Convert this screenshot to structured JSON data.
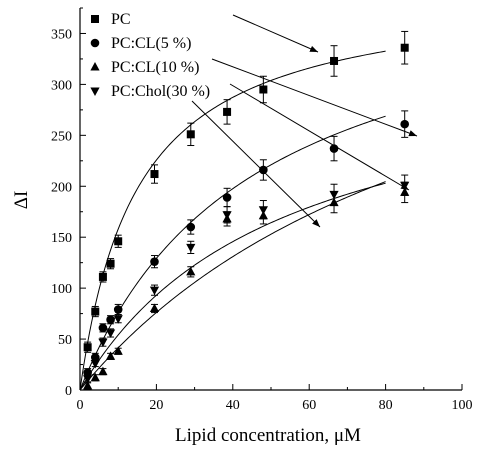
{
  "chart_data": {
    "type": "scatter",
    "title": "",
    "xlabel": "Lipid concentration, μM",
    "ylabel": "ΔI",
    "xlim": [
      0,
      100
    ],
    "ylim": [
      0,
      375
    ],
    "xticks": [
      0,
      20,
      40,
      60,
      80,
      100
    ],
    "yticks": [
      0,
      50,
      100,
      150,
      200,
      250,
      300,
      350
    ],
    "grid": false,
    "legend_position": "top-left",
    "series": [
      {
        "name": "PC",
        "marker": "square",
        "x": [
          2,
          4,
          6,
          8,
          10,
          19.5,
          29,
          38.5,
          48,
          66.5,
          85
        ],
        "y": [
          42,
          77,
          111,
          124,
          146,
          212,
          251,
          273,
          295,
          323,
          336
        ],
        "err": [
          5,
          5,
          5,
          5,
          6,
          9,
          11,
          12,
          13,
          15,
          16
        ],
        "fit": {
          "a": 395,
          "b": 15
        }
      },
      {
        "name": "PC:CL(5 %)",
        "marker": "circle",
        "x": [
          2,
          4,
          6,
          8,
          10,
          19.5,
          29,
          38.5,
          48,
          66.5,
          85
        ],
        "y": [
          17,
          32,
          61,
          69,
          79,
          126,
          160,
          189,
          216,
          237,
          261
        ],
        "err": [
          4,
          4,
          4,
          4,
          5,
          6,
          7,
          9,
          10,
          12,
          13
        ],
        "fit": {
          "a": 420,
          "b": 45
        }
      },
      {
        "name": "PC:CL(10 %)",
        "marker": "triangle-up",
        "x": [
          2,
          4,
          6,
          8,
          10,
          19.5,
          29,
          38.5,
          48,
          66.5,
          85
        ],
        "y": [
          4,
          12,
          18,
          33,
          38,
          80,
          116,
          168,
          171,
          184,
          194
        ],
        "err": [
          3,
          3,
          3,
          3,
          3,
          4,
          5,
          7,
          8,
          10,
          10
        ],
        "fit": {
          "a": 468,
          "b": 103
        }
      },
      {
        "name": "PC:Chol(30 %)",
        "marker": "triangle-down",
        "x": [
          2,
          4,
          6,
          8,
          10,
          19.5,
          29,
          38.5,
          48,
          66.5,
          85
        ],
        "y": [
          11,
          26,
          47,
          56,
          70,
          98,
          140,
          172,
          177,
          192,
          201
        ],
        "err": [
          3,
          3,
          4,
          4,
          4,
          5,
          6,
          8,
          9,
          10,
          10
        ],
        "fit": {
          "a": 335,
          "b": 52
        }
      }
    ],
    "fit_x_max": 80,
    "annotations": "arrows from each legend entry to the end of its fitted curve"
  }
}
